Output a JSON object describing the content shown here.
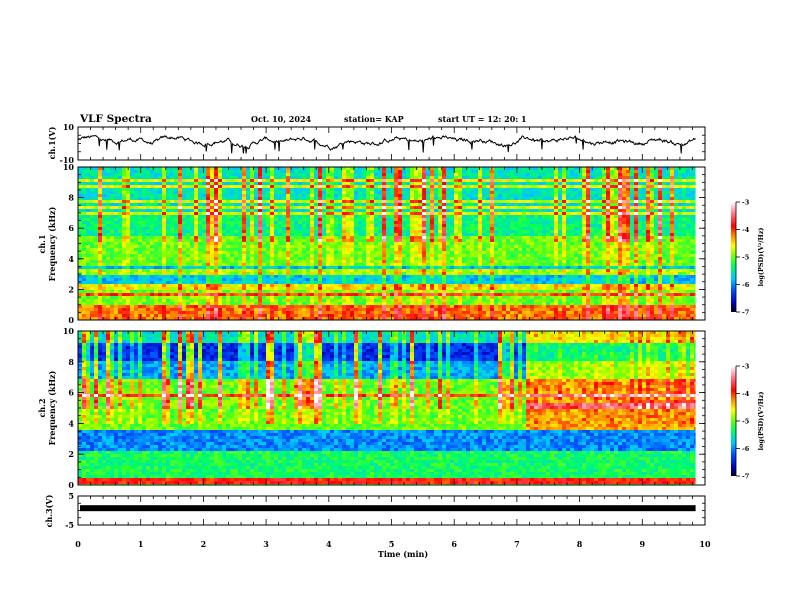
{
  "header": {
    "title": "VLF Spectra",
    "date": "Oct. 10, 2024",
    "station": "station= KAP",
    "start": "start  UT  =   12: 20: 1"
  },
  "chart_data": [
    {
      "type": "line",
      "name": "ch1-waveform",
      "ylabel": "ch.1(V)",
      "ylim": [
        -10,
        10
      ],
      "yticks": [
        "10",
        "-10"
      ],
      "xlim": [
        0,
        10.0
      ],
      "note": "noisy waveform, approx. mean 1.5 V, amplitude ±4 V, ends near 9.85 min"
    },
    {
      "type": "heatmap",
      "name": "ch1-spectrogram",
      "ylabel_line1": "ch.1",
      "ylabel_line2": "Frequency (kHz)",
      "ylim": [
        0,
        10
      ],
      "yticks": [
        "0",
        "2",
        "4",
        "6",
        "8",
        "10"
      ],
      "xlim": [
        0,
        10
      ],
      "data_end_min": 9.85,
      "colorbar": {
        "label": "log(PSD)(V²/Hz)",
        "range": [
          -7,
          -3
        ],
        "ticks": [
          "-3",
          "-4",
          "-5",
          "-6",
          "-7"
        ]
      },
      "bands_khz": [
        {
          "f0": 0,
          "f1": 1.0,
          "level": -4.2
        },
        {
          "f0": 1.0,
          "f1": 2.0,
          "level": -5.0
        },
        {
          "f0": 2.0,
          "f1": 2.4,
          "level": -4.6
        },
        {
          "f0": 2.4,
          "f1": 3.6,
          "level": -5.8
        },
        {
          "f0": 3.6,
          "f1": 5.4,
          "level": -5.0
        },
        {
          "f0": 5.4,
          "f1": 6.8,
          "level": -5.4
        },
        {
          "f0": 6.8,
          "f1": 10,
          "level": -5.6
        }
      ]
    },
    {
      "type": "heatmap",
      "name": "ch2-spectrogram",
      "ylabel_line1": "ch.2",
      "ylabel_line2": "Frequency (kHz)",
      "ylim": [
        0,
        10
      ],
      "yticks": [
        "0",
        "2",
        "4",
        "6",
        "8",
        "10"
      ],
      "xlim": [
        0,
        10
      ],
      "data_end_min": 9.85,
      "colorbar": {
        "label": "log(PSD)(V²/Hz)",
        "range": [
          -7,
          -3
        ],
        "ticks": [
          "-3",
          "-4",
          "-5",
          "-6",
          "-7"
        ]
      },
      "bands_khz": [
        {
          "f0": 0,
          "f1": 0.4,
          "level": -3.9
        },
        {
          "f0": 0.4,
          "f1": 2.2,
          "level": -5.3
        },
        {
          "f0": 2.2,
          "f1": 3.6,
          "level": -6.0
        },
        {
          "f0": 3.6,
          "f1": 6.8,
          "level": -5.0
        },
        {
          "f0": 6.8,
          "f1": 8.0,
          "level": -5.9
        },
        {
          "f0": 8.0,
          "f1": 9.2,
          "level": -6.4
        },
        {
          "f0": 9.2,
          "f1": 10,
          "level": -5.6
        }
      ]
    },
    {
      "type": "line",
      "name": "ch3-waveform",
      "ylabel": "ch.3(V)",
      "ylim": [
        -5,
        5
      ],
      "yticks": [
        "5",
        "-5"
      ],
      "xlim": [
        0,
        10
      ],
      "value_v": 0.8,
      "data_end_min": 9.85
    }
  ],
  "xaxis": {
    "label": "Time  (min)",
    "ticks": [
      "0",
      "1",
      "2",
      "3",
      "4",
      "5",
      "6",
      "7",
      "8",
      "9",
      "10"
    ]
  },
  "colors": {
    "line": "#000000"
  }
}
